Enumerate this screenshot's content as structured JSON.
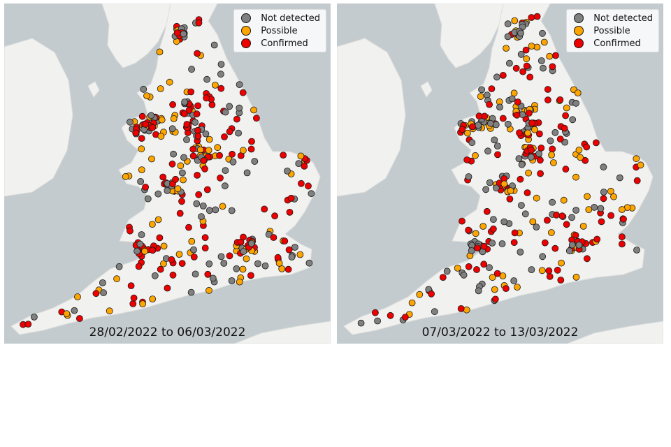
{
  "legend": {
    "items": [
      {
        "label": "Not detected",
        "color": "#808080"
      },
      {
        "label": "Possible",
        "color": "#FFA500"
      },
      {
        "label": "Confirmed",
        "color": "#EE0000"
      }
    ]
  },
  "colors": {
    "sea": "#C4CBCE",
    "land": "#F1F1EF",
    "land_outline": "#E0E0DE",
    "marker_edge": "#1a1a1a"
  },
  "panels": [
    {
      "date_range": "28/02/2022 to 06/03/2022"
    },
    {
      "date_range": "07/03/2022 to 13/03/2022"
    }
  ]
}
